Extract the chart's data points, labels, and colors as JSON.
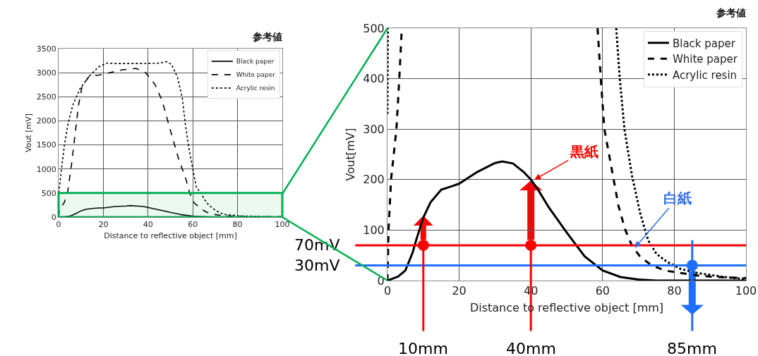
{
  "chart_data": [
    {
      "type": "line",
      "title": "参考値",
      "xlabel": "Distance to reflective object [mm]",
      "ylabel": "Vout [mV]",
      "xlim": [
        0,
        100
      ],
      "xticks": [
        0,
        20,
        40,
        60,
        80,
        100
      ],
      "ylim": [
        0,
        3500
      ],
      "yticks": [
        0,
        500,
        1000,
        1500,
        2000,
        2500,
        3000,
        3500
      ],
      "grid": true,
      "legend": "top right",
      "bands": [
        {
          "axis": "y",
          "from": 0,
          "to": 500,
          "color": "#00b050"
        }
      ],
      "series": [
        {
          "name": "Black paper",
          "color": "#000000",
          "line_style": "solid",
          "x": [
            0,
            3,
            5,
            7,
            8,
            10,
            12,
            15,
            18,
            20,
            25,
            30,
            32,
            35,
            38,
            40,
            42,
            45,
            50,
            55,
            60,
            65,
            70,
            75,
            80,
            100
          ],
          "values": [
            0,
            10,
            20,
            60,
            80,
            130,
            160,
            180,
            190,
            190,
            220,
            230,
            240,
            230,
            220,
            200,
            180,
            150,
            100,
            50,
            20,
            10,
            0,
            0,
            0,
            0
          ]
        },
        {
          "name": "White paper",
          "color": "#000000",
          "line_style": "dashed",
          "x": [
            0,
            0.3,
            1,
            2.5,
            4,
            5.8,
            7.4,
            8.9,
            10.5,
            13.7,
            18,
            23,
            28.4,
            34.7,
            39,
            43,
            46.3,
            49.5,
            53.7,
            56.8,
            58.6,
            60.5,
            63.3,
            64.4,
            66.3,
            68.2,
            70.5,
            73.5,
            77.3,
            81.8,
            86.4,
            91.7,
            100
          ],
          "values": [
            0,
            100,
            200,
            300,
            500,
            1100,
            1730,
            2320,
            2710,
            2930,
            2950,
            3000,
            3060,
            3090,
            3000,
            2760,
            2420,
            1880,
            1200,
            810,
            500,
            300,
            190,
            150,
            100,
            70,
            50,
            30,
            20,
            20,
            10,
            10,
            10
          ]
        },
        {
          "name": "Acrylic resin",
          "color": "#000000",
          "line_style": "dotted",
          "x": [
            0,
            0.1,
            1.3,
            2.6,
            4.2,
            6.3,
            9.5,
            13.7,
            17.9,
            21.6,
            26.3,
            36.8,
            45.3,
            48.4,
            50.5,
            53.2,
            55.3,
            56.8,
            58.4,
            60,
            61.6,
            63.8,
            64.8,
            66.1,
            68.2,
            70.5,
            72.7,
            75,
            78,
            81.8,
            86.4,
            94,
            100
          ],
          "values": [
            330,
            500,
            1000,
            1490,
            1930,
            2320,
            2660,
            2930,
            3120,
            3200,
            3190,
            3190,
            3200,
            3230,
            3170,
            2900,
            2470,
            1880,
            1390,
            1000,
            610,
            500,
            400,
            300,
            210,
            130,
            80,
            50,
            40,
            20,
            20,
            10,
            0
          ]
        }
      ]
    },
    {
      "type": "line",
      "title": "参考値",
      "xlabel": "Distance to reflective object [mm]",
      "ylabel": "Vout[mV]",
      "xlim": [
        0,
        100
      ],
      "xticks": [
        0,
        20,
        40,
        60,
        80,
        100
      ],
      "ylim": [
        0,
        500
      ],
      "yticks": [
        0,
        100,
        200,
        300,
        400,
        500
      ],
      "grid": true,
      "legend": "top right",
      "ref_lines": [
        {
          "axis": "y",
          "value": 70,
          "label": "70mV",
          "color": "#ff0000"
        },
        {
          "axis": "y",
          "value": 30,
          "label": "30mV",
          "color": "#1f6fff"
        },
        {
          "axis": "x",
          "value": 10,
          "label": "10mm",
          "color": "#ff0000"
        },
        {
          "axis": "x",
          "value": 40,
          "label": "40mm",
          "color": "#ff0000"
        },
        {
          "axis": "x",
          "value": 85,
          "label": "85mm",
          "color": "#1f6fff"
        }
      ],
      "annotations": [
        {
          "text": "黒紙",
          "x": 41,
          "y": 200
        },
        {
          "text": "白紙",
          "x": 69,
          "y": 65
        }
      ],
      "series": [
        {
          "name": "Black paper",
          "color": "#000000",
          "line_style": "solid",
          "x": [
            0,
            3,
            5,
            7,
            8,
            10,
            12,
            15,
            18,
            20,
            25,
            30,
            32,
            35,
            38,
            40,
            42,
            45,
            50,
            55,
            60,
            65,
            70,
            75,
            80,
            100
          ],
          "values": [
            0,
            8,
            20,
            55,
            80,
            125,
            155,
            180,
            187,
            192,
            215,
            233,
            236,
            232,
            215,
            200,
            180,
            145,
            95,
            48,
            20,
            7,
            2,
            0,
            0,
            0
          ]
        },
        {
          "name": "White paper",
          "color": "#000000",
          "line_style": "dashed",
          "x": [
            0,
            0.3,
            1,
            2.5,
            3.3,
            4,
            30,
            58.6,
            59.5,
            60.5,
            63.3,
            64.4,
            66.3,
            68.2,
            70.5,
            73.5,
            77.3,
            81.8,
            86.4,
            91.7,
            100
          ],
          "values": [
            0,
            100,
            200,
            300,
            400,
            500,
            null,
            500,
            400,
            300,
            192,
            149,
            101,
            69,
            47,
            31,
            20,
            15,
            10,
            7,
            5
          ]
        },
        {
          "name": "Acrylic resin",
          "color": "#000000",
          "line_style": "dotted",
          "x": [
            0,
            0.1,
            30,
            63.8,
            64.8,
            66.1,
            68.2,
            70.5,
            72.7,
            75,
            78,
            81.8,
            86.4,
            94,
            100
          ],
          "values": [
            330,
            500,
            null,
            500,
            400,
            300,
            208,
            133,
            80,
            53,
            37,
            23,
            15,
            7,
            3
          ]
        },
        {
          "type": "scatter",
          "marker": "circle",
          "x": [
            10,
            40,
            85
          ],
          "values": [
            70,
            70,
            30
          ],
          "colors": [
            "#ff0000",
            "#ff0000",
            "#1f6fff"
          ]
        }
      ]
    }
  ]
}
